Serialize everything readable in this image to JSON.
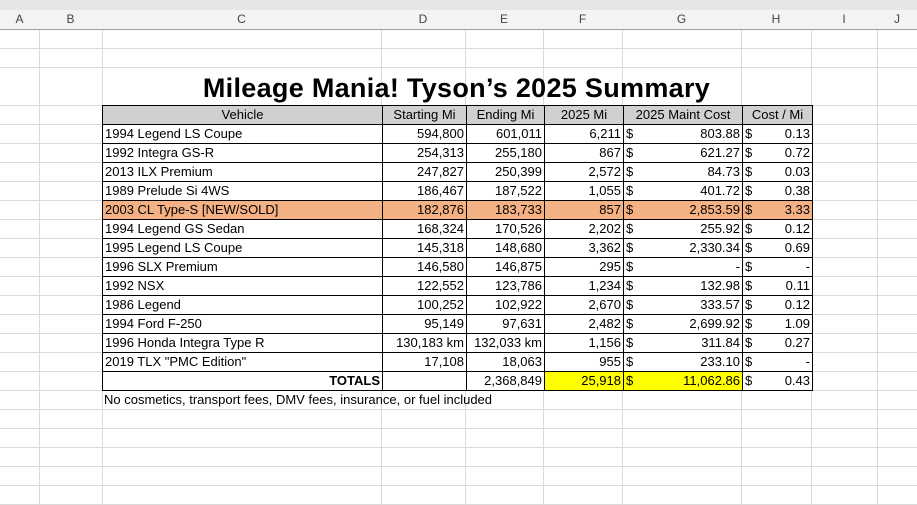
{
  "columns": [
    "A",
    "B",
    "C",
    "D",
    "E",
    "F",
    "G",
    "H",
    "I",
    "J"
  ],
  "title": "Mileage Mania!  Tyson’s 2025 Summary",
  "headers": [
    "Vehicle",
    "Starting Mi",
    "Ending Mi",
    "2025 Mi",
    "2025 Maint Cost",
    "Cost / Mi"
  ],
  "rows": [
    {
      "vehicle": "1994 Legend LS Coupe",
      "start": "594,800",
      "end": "601,011",
      "mi": "6,211",
      "cost": "803.88",
      "cpm": "0.13"
    },
    {
      "vehicle": "1992 Integra GS-R",
      "start": "254,313",
      "end": "255,180",
      "mi": "867",
      "cost": "621.27",
      "cpm": "0.72"
    },
    {
      "vehicle": "2013 ILX Premium",
      "start": "247,827",
      "end": "250,399",
      "mi": "2,572",
      "cost": "84.73",
      "cpm": "0.03"
    },
    {
      "vehicle": "1989 Prelude Si 4WS",
      "start": "186,467",
      "end": "187,522",
      "mi": "1,055",
      "cost": "401.72",
      "cpm": "0.38"
    },
    {
      "vehicle": "2003 CL Type-S [NEW/SOLD]",
      "start": "182,876",
      "end": "183,733",
      "mi": "857",
      "cost": "2,853.59",
      "cpm": "3.33",
      "highlight": true
    },
    {
      "vehicle": "1994 Legend GS Sedan",
      "start": "168,324",
      "end": "170,526",
      "mi": "2,202",
      "cost": "255.92",
      "cpm": "0.12"
    },
    {
      "vehicle": "1995 Legend LS Coupe",
      "start": "145,318",
      "end": "148,680",
      "mi": "3,362",
      "cost": "2,330.34",
      "cpm": "0.69"
    },
    {
      "vehicle": "1996 SLX Premium",
      "start": "146,580",
      "end": "146,875",
      "mi": "295",
      "cost": "-",
      "cpm": "-"
    },
    {
      "vehicle": "1992 NSX",
      "start": "122,552",
      "end": "123,786",
      "mi": "1,234",
      "cost": "132.98",
      "cpm": "0.11"
    },
    {
      "vehicle": "1986 Legend",
      "start": "100,252",
      "end": "102,922",
      "mi": "2,670",
      "cost": "333.57",
      "cpm": "0.12"
    },
    {
      "vehicle": "1994 Ford F-250",
      "start": "95,149",
      "end": "97,631",
      "mi": "2,482",
      "cost": "2,699.92",
      "cpm": "1.09"
    },
    {
      "vehicle": "1996 Honda Integra Type R",
      "start": "130,183 km",
      "end": "132,033 km",
      "mi": "1,156",
      "cost": "311.84",
      "cpm": "0.27"
    },
    {
      "vehicle": "2019 TLX \"PMC Edition\"",
      "start": "17,108",
      "end": "18,063",
      "mi": "955",
      "cost": "233.10",
      "cpm": "-"
    }
  ],
  "currency": "$",
  "totals": {
    "label": "TOTALS",
    "end": "2,368,849",
    "mi": "25,918",
    "cost": "11,062.86",
    "cpm": "0.43"
  },
  "note": "No cosmetics, transport fees, DMV fees, insurance, or fuel included",
  "colors": {
    "highlight_row": "#f4b183",
    "totals_highlight": "#ffff00",
    "header_fill": "#d0d0d0"
  }
}
